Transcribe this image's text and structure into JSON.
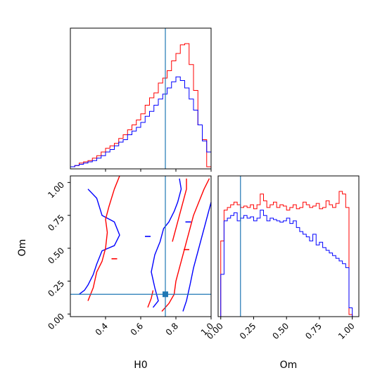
{
  "chart_data": [
    {
      "type": "histogram",
      "panel": "H0 marginal",
      "bin_edges": [
        0.2,
        0.225,
        0.25,
        0.275,
        0.3,
        0.325,
        0.35,
        0.375,
        0.4,
        0.425,
        0.45,
        0.475,
        0.5,
        0.525,
        0.55,
        0.575,
        0.6,
        0.625,
        0.65,
        0.675,
        0.7,
        0.725,
        0.75,
        0.775,
        0.8,
        0.825,
        0.85,
        0.875,
        0.9,
        0.925,
        0.95,
        0.975,
        1.0
      ],
      "series": [
        {
          "color": "#ff0000",
          "values": [
            0,
            1,
            3,
            4,
            5,
            7,
            9,
            12,
            15,
            17,
            19,
            23,
            26,
            30,
            34,
            38,
            43,
            50,
            56,
            60,
            68,
            72,
            78,
            86,
            92,
            99,
            100,
            83,
            62,
            34,
            22,
            0
          ]
        },
        {
          "color": "#0000ff",
          "values": [
            0,
            1,
            2,
            3,
            4,
            5,
            7,
            9,
            12,
            14,
            17,
            20,
            22,
            26,
            29,
            32,
            36,
            41,
            45,
            50,
            55,
            59,
            64,
            69,
            73,
            70,
            64,
            55,
            46,
            34,
            21,
            12
          ]
        }
      ],
      "truth_line": {
        "x": 0.74,
        "color": "#1f77b4"
      }
    },
    {
      "type": "contour",
      "panel": "H0 vs Om",
      "xlabel": "H0",
      "ylabel": "Om",
      "xlim": [
        0.2,
        1.0
      ],
      "ylim": [
        -0.02,
        1.05
      ],
      "xticks": [
        "0.4",
        "0.6",
        "0.8",
        "1.0"
      ],
      "yticks": [
        "0.00",
        "0.25",
        "0.50",
        "0.75",
        "1.00"
      ],
      "truth": {
        "x": 0.74,
        "y": 0.15,
        "color": "#1f77b4"
      },
      "contours": [
        {
          "color": "#0000ff",
          "points": [
            [
              0.3,
              0.95
            ],
            [
              0.35,
              0.88
            ],
            [
              0.38,
              0.75
            ],
            [
              0.45,
              0.7
            ],
            [
              0.48,
              0.6
            ],
            [
              0.45,
              0.52
            ],
            [
              0.38,
              0.48
            ],
            [
              0.35,
              0.38
            ],
            [
              0.33,
              0.3
            ],
            [
              0.3,
              0.22
            ],
            [
              0.28,
              0.18
            ],
            [
              0.25,
              0.15
            ]
          ]
        },
        {
          "color": "#0000ff",
          "points": [
            [
              0.67,
              0.05
            ],
            [
              0.7,
              0.1
            ],
            [
              0.68,
              0.2
            ],
            [
              0.66,
              0.32
            ],
            [
              0.68,
              0.45
            ],
            [
              0.71,
              0.55
            ],
            [
              0.73,
              0.65
            ],
            [
              0.76,
              0.7
            ],
            [
              0.79,
              0.78
            ],
            [
              0.81,
              0.85
            ],
            [
              0.83,
              0.95
            ],
            [
              0.82,
              1.03
            ]
          ]
        },
        {
          "color": "#0000ff",
          "points": [
            [
              0.84,
              0.02
            ],
            [
              0.86,
              0.1
            ],
            [
              0.88,
              0.22
            ],
            [
              0.9,
              0.35
            ],
            [
              0.92,
              0.45
            ],
            [
              0.94,
              0.55
            ],
            [
              0.96,
              0.65
            ],
            [
              0.98,
              0.75
            ],
            [
              1.0,
              0.85
            ]
          ]
        },
        {
          "color": "#ff0000",
          "points": [
            [
              0.3,
              0.1
            ],
            [
              0.33,
              0.2
            ],
            [
              0.35,
              0.32
            ],
            [
              0.38,
              0.4
            ],
            [
              0.4,
              0.5
            ],
            [
              0.41,
              0.62
            ],
            [
              0.4,
              0.72
            ],
            [
              0.42,
              0.82
            ],
            [
              0.45,
              0.95
            ],
            [
              0.48,
              1.05
            ]
          ]
        },
        {
          "color": "#ff0000",
          "points": [
            [
              0.72,
              0.02
            ],
            [
              0.76,
              0.08
            ],
            [
              0.79,
              0.15
            ],
            [
              0.8,
              0.25
            ],
            [
              0.82,
              0.35
            ],
            [
              0.84,
              0.45
            ],
            [
              0.86,
              0.55
            ],
            [
              0.88,
              0.65
            ],
            [
              0.9,
              0.75
            ],
            [
              0.93,
              0.85
            ],
            [
              0.96,
              0.95
            ],
            [
              0.99,
              1.03
            ]
          ]
        },
        {
          "color": "#ff0000",
          "points": [
            [
              0.64,
              0.05
            ],
            [
              0.66,
              0.12
            ],
            [
              0.67,
              0.18
            ]
          ]
        },
        {
          "color": "#ff0000",
          "points": [
            [
              0.78,
              0.55
            ],
            [
              0.8,
              0.65
            ],
            [
              0.82,
              0.75
            ],
            [
              0.84,
              0.85
            ],
            [
              0.86,
              0.95
            ],
            [
              0.86,
              1.03
            ]
          ]
        }
      ],
      "markers": [
        {
          "color": "#ff0000",
          "x": 0.45,
          "y": 0.42
        },
        {
          "color": "#0000ff",
          "x": 0.64,
          "y": 0.59
        },
        {
          "color": "#0000ff",
          "x": 0.87,
          "y": 0.7
        },
        {
          "color": "#ff0000",
          "x": 0.86,
          "y": 0.49
        }
      ]
    },
    {
      "type": "histogram",
      "panel": "Om marginal",
      "xlabel": "Om",
      "xlim": [
        -0.02,
        1.05
      ],
      "xticks": [
        "0.00",
        "0.25",
        "0.50",
        "0.75",
        "1.00"
      ],
      "bin_edges": [
        0.0,
        0.025,
        0.05,
        0.075,
        0.1,
        0.125,
        0.15,
        0.175,
        0.2,
        0.225,
        0.25,
        0.275,
        0.3,
        0.325,
        0.35,
        0.375,
        0.4,
        0.425,
        0.45,
        0.475,
        0.5,
        0.525,
        0.55,
        0.575,
        0.6,
        0.625,
        0.65,
        0.675,
        0.7,
        0.725,
        0.75,
        0.775,
        0.8,
        0.825,
        0.85,
        0.875,
        0.9,
        0.925,
        0.95,
        0.975,
        1.0
      ],
      "series": [
        {
          "color": "#ff0000",
          "values": [
            55,
            78,
            80,
            82,
            84,
            82,
            80,
            81,
            80,
            82,
            79,
            82,
            90,
            85,
            80,
            82,
            84,
            80,
            82,
            81,
            78,
            80,
            82,
            79,
            80,
            84,
            82,
            80,
            81,
            83,
            79,
            80,
            85,
            82,
            80,
            83,
            92,
            90,
            80,
            0
          ]
        },
        {
          "color": "#0000ff",
          "values": [
            30,
            70,
            72,
            74,
            76,
            70,
            72,
            74,
            72,
            73,
            70,
            72,
            78,
            74,
            70,
            72,
            71,
            70,
            69,
            70,
            72,
            68,
            70,
            65,
            62,
            60,
            58,
            55,
            60,
            52,
            54,
            50,
            48,
            46,
            44,
            42,
            40,
            38,
            35,
            5
          ]
        }
      ],
      "truth_line": {
        "x": 0.15,
        "color": "#1f77b4"
      }
    }
  ]
}
